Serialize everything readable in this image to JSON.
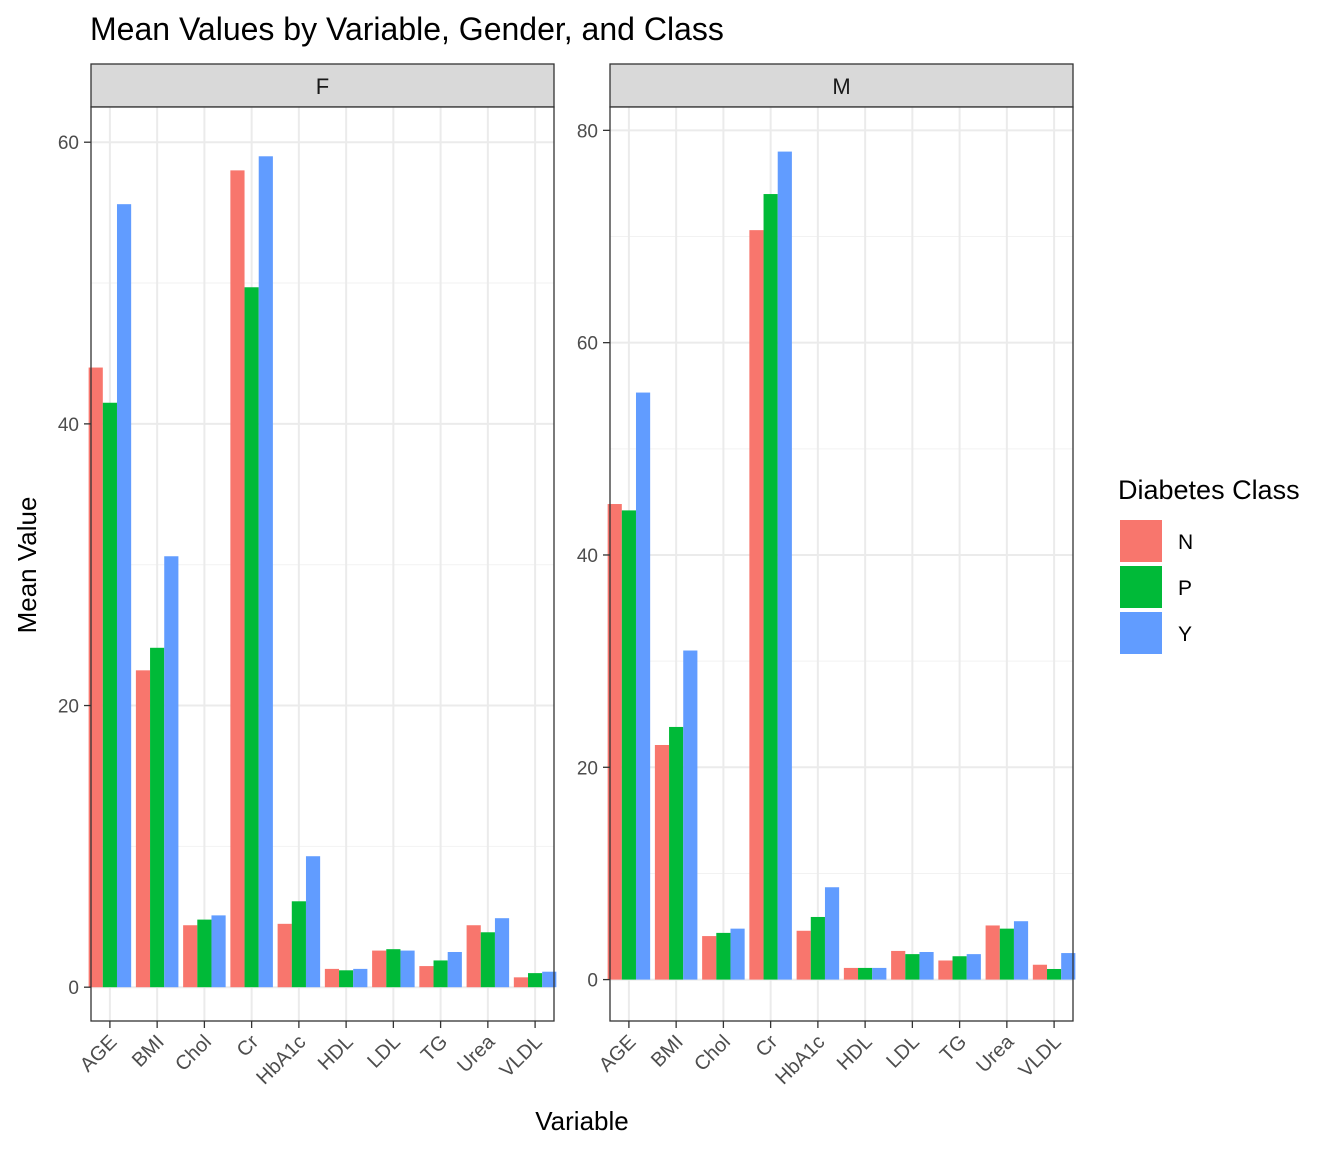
{
  "chart_data": {
    "type": "bar",
    "title": "Mean Values by Variable, Gender, and Class",
    "xlabel": "Variable",
    "ylabel": "Mean Value",
    "grid": true,
    "legend": {
      "title": "Diabetes Class",
      "placement": "right",
      "entries": [
        {
          "name": "N",
          "color": "#F8766D"
        },
        {
          "name": "P",
          "color": "#00BA38"
        },
        {
          "name": "Y",
          "color": "#619CFF"
        }
      ]
    },
    "categories": [
      "AGE",
      "BMI",
      "Chol",
      "Cr",
      "HbA1c",
      "HDL",
      "LDL",
      "TG",
      "Urea",
      "VLDL"
    ],
    "facets": [
      {
        "label": "F",
        "ylim": [
          -2.4,
          62.5
        ],
        "yticks": [
          0,
          20,
          40,
          60
        ],
        "series": [
          {
            "name": "N",
            "values": [
              44.0,
              22.5,
              4.4,
              58.0,
              4.5,
              1.3,
              2.6,
              1.5,
              4.4,
              0.7
            ]
          },
          {
            "name": "P",
            "values": [
              41.5,
              24.1,
              4.8,
              49.7,
              6.1,
              1.2,
              2.7,
              1.9,
              3.9,
              1.0
            ]
          },
          {
            "name": "Y",
            "values": [
              55.6,
              30.6,
              5.1,
              59.0,
              9.3,
              1.3,
              2.6,
              2.5,
              4.9,
              1.1
            ]
          }
        ]
      },
      {
        "label": "M",
        "ylim": [
          -3.9,
          82.2
        ],
        "yticks": [
          0,
          20,
          40,
          60,
          80
        ],
        "series": [
          {
            "name": "N",
            "values": [
              44.8,
              22.1,
              4.1,
              70.6,
              4.6,
              1.1,
              2.7,
              1.8,
              5.1,
              1.4
            ]
          },
          {
            "name": "P",
            "values": [
              44.2,
              23.8,
              4.4,
              74.0,
              5.9,
              1.1,
              2.4,
              2.2,
              4.8,
              1.0
            ]
          },
          {
            "name": "Y",
            "values": [
              55.3,
              31.0,
              4.8,
              78.0,
              8.7,
              1.1,
              2.6,
              2.4,
              5.5,
              2.5
            ]
          }
        ]
      }
    ]
  }
}
